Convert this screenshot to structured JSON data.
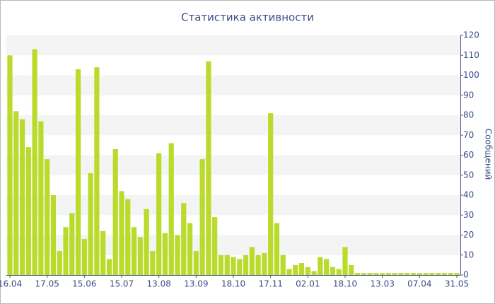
{
  "chart_data": {
    "type": "bar",
    "title": "Статистика активности",
    "y_label": "Сообщений",
    "categories": [
      "16.04",
      null,
      null,
      null,
      null,
      null,
      "17.05",
      null,
      null,
      null,
      null,
      null,
      "15.06",
      null,
      null,
      null,
      null,
      null,
      "15.07",
      null,
      null,
      null,
      null,
      null,
      "13.08",
      null,
      null,
      null,
      null,
      null,
      "13.09",
      null,
      null,
      null,
      null,
      null,
      "18.10",
      null,
      null,
      null,
      null,
      null,
      "17.11",
      null,
      null,
      null,
      null,
      null,
      "02.01",
      null,
      null,
      null,
      null,
      null,
      "18.10",
      null,
      null,
      null,
      null,
      null,
      "13.03",
      null,
      null,
      null,
      null,
      null,
      "07.04",
      null,
      null,
      null,
      null,
      null,
      "31.05"
    ],
    "values": [
      110,
      82,
      78,
      64,
      113,
      77,
      58,
      40,
      12,
      24,
      31,
      103,
      18,
      51,
      104,
      22,
      8,
      63,
      42,
      38,
      24,
      19,
      33,
      12,
      61,
      21,
      66,
      20,
      36,
      26,
      12,
      58,
      107,
      29,
      10,
      10,
      9,
      8,
      10,
      14,
      10,
      11,
      81,
      26,
      10,
      3,
      5,
      6,
      4,
      2,
      9,
      8,
      4,
      3,
      14,
      5,
      1,
      1,
      1,
      1,
      1,
      1,
      1,
      1,
      1,
      1,
      1,
      1,
      1,
      1,
      1,
      1,
      1
    ],
    "color": "#bada2c",
    "ylim": [
      0,
      120
    ],
    "yticks": [
      0,
      10,
      20,
      30,
      40,
      50,
      60,
      70,
      80,
      90,
      100,
      110,
      120
    ],
    "grid": true
  }
}
